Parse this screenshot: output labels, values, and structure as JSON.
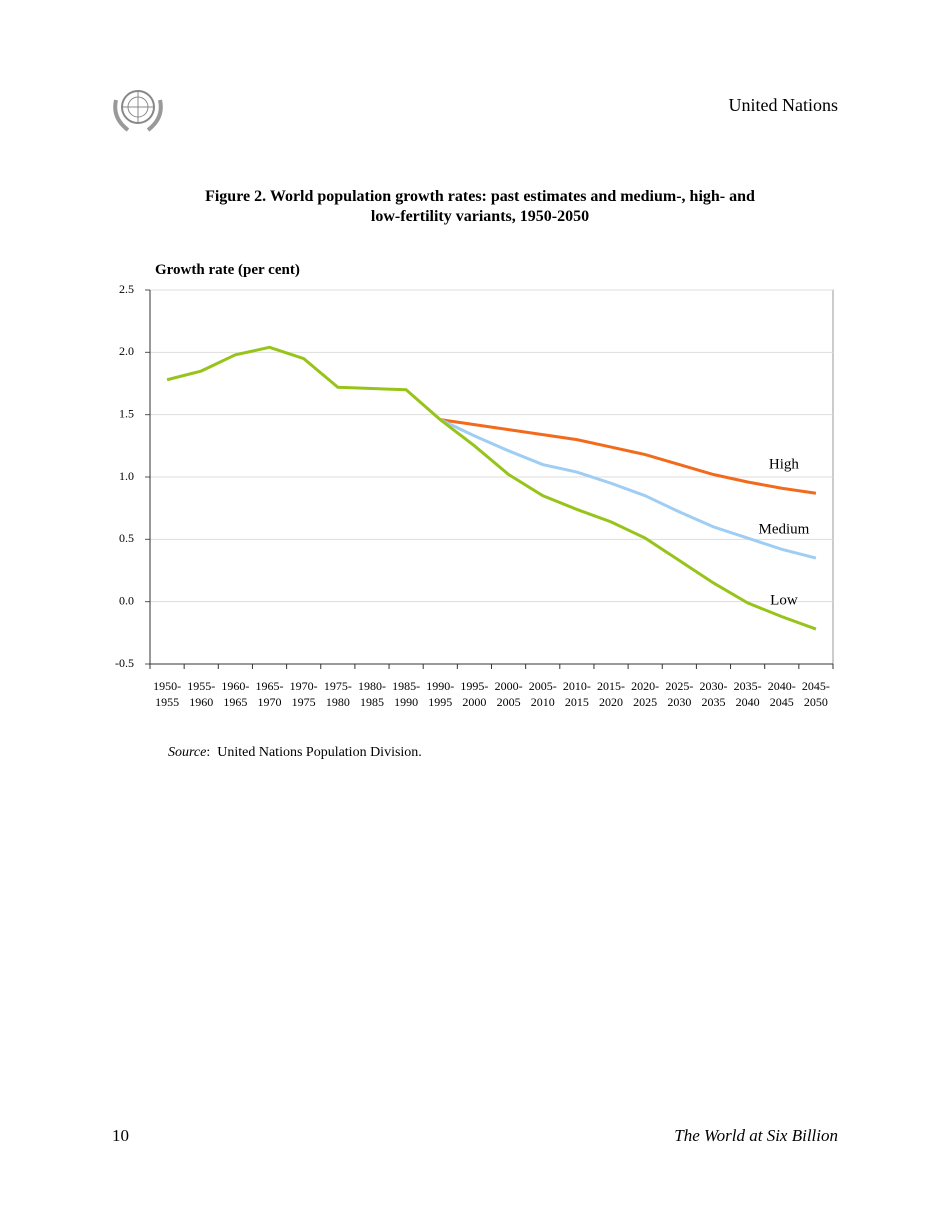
{
  "header": {
    "organization": "United Nations"
  },
  "chart_data": {
    "type": "line",
    "title": "Figure 2.  World population growth rates: past estimates and medium-, high- and low-fertility variants, 1950-2050",
    "y_label": "Growth rate (per cent)",
    "categories": [
      "1950-1955",
      "1955-1960",
      "1960-1965",
      "1965-1970",
      "1970-1975",
      "1975-1980",
      "1980-1985",
      "1985-1990",
      "1990-1995",
      "1995-2000",
      "2000-2005",
      "2005-2010",
      "2010-2015",
      "2015-2020",
      "2020-2025",
      "2025-2030",
      "2030-2035",
      "2035-2040",
      "2040-2045",
      "2045-2050"
    ],
    "series": [
      {
        "name": "High",
        "color": "#f26b1d",
        "values": [
          null,
          null,
          null,
          null,
          null,
          null,
          null,
          null,
          1.46,
          1.42,
          1.38,
          1.34,
          1.3,
          1.24,
          1.18,
          1.1,
          1.02,
          0.96,
          0.91,
          0.87
        ]
      },
      {
        "name": "Medium",
        "color": "#9fcdf3",
        "values": [
          null,
          null,
          null,
          null,
          null,
          null,
          null,
          null,
          1.46,
          1.33,
          1.21,
          1.1,
          1.04,
          0.95,
          0.85,
          0.72,
          0.6,
          0.51,
          0.42,
          0.35
        ]
      },
      {
        "name": "Low",
        "color": "#97c41a",
        "values": [
          1.78,
          1.85,
          1.98,
          2.04,
          1.95,
          1.72,
          1.71,
          1.7,
          1.46,
          1.25,
          1.02,
          0.85,
          0.74,
          0.64,
          0.51,
          0.33,
          0.15,
          -0.01,
          -0.12,
          -0.22
        ]
      }
    ],
    "ylim": [
      -0.5,
      2.5
    ],
    "yticks": [
      -0.5,
      {
        "value": 0,
        "label": "0.0"
      },
      0.5,
      {
        "value": 1,
        "label": "1.0"
      },
      1.5,
      {
        "value": 2,
        "label": "2.0"
      },
      2.5
    ],
    "grid": true
  },
  "source": {
    "label": "Source",
    "text": ":  United Nations Population Division."
  },
  "footer": {
    "page": "10",
    "book": "The World at Six Billion"
  }
}
